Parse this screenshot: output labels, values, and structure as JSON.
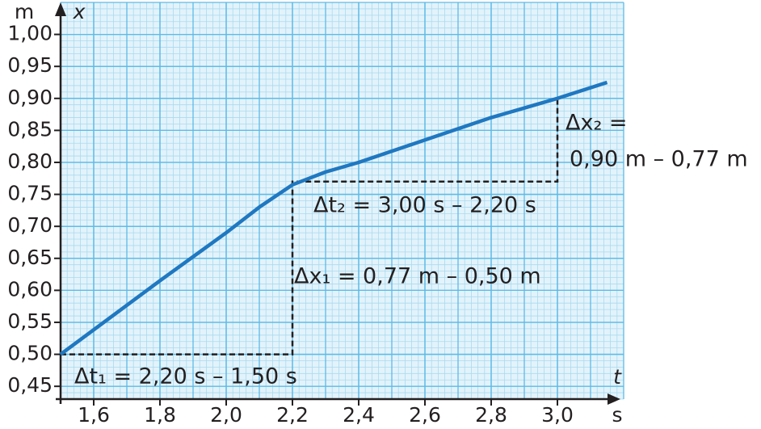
{
  "chart_data": {
    "type": "line",
    "x": [
      1.5,
      1.8,
      2.0,
      2.1,
      2.2,
      2.3,
      2.4,
      2.6,
      2.8,
      3.0,
      3.15
    ],
    "series": [
      {
        "color": "#1f78c1",
        "values": [
          0.5,
          0.615,
          0.69,
          0.73,
          0.765,
          0.785,
          0.8,
          0.835,
          0.87,
          0.9,
          0.925
        ]
      }
    ],
    "reference_path": {
      "x": [
        1.5,
        2.2,
        2.2,
        3.0,
        3.0
      ],
      "y": [
        0.5,
        0.5,
        0.77,
        0.77,
        0.9
      ]
    },
    "xlim": [
      1.5,
      3.2
    ],
    "ylim": [
      0.43,
      1.05
    ],
    "xticks": [
      {
        "value": 1.6,
        "label": "1,6"
      },
      {
        "value": 1.8,
        "label": "1,8"
      },
      {
        "value": 2.0,
        "label": "2,0"
      },
      {
        "value": 2.2,
        "label": "2,2"
      },
      {
        "value": 2.4,
        "label": "2,4"
      },
      {
        "value": 2.6,
        "label": "2,6"
      },
      {
        "value": 2.8,
        "label": "2,8"
      },
      {
        "value": 3.0,
        "label": "3,0"
      }
    ],
    "yticks": [
      {
        "value": 0.45,
        "label": "0,45"
      },
      {
        "value": 0.5,
        "label": "0,50"
      },
      {
        "value": 0.55,
        "label": "0,55"
      },
      {
        "value": 0.6,
        "label": "0,60"
      },
      {
        "value": 0.65,
        "label": "0,65"
      },
      {
        "value": 0.7,
        "label": "0,70"
      },
      {
        "value": 0.75,
        "label": "0,75"
      },
      {
        "value": 0.8,
        "label": "0,80"
      },
      {
        "value": 0.85,
        "label": "0,85"
      },
      {
        "value": 0.9,
        "label": "0,90"
      },
      {
        "value": 0.95,
        "label": "0,95"
      },
      {
        "value": 1.0,
        "label": "1,00"
      }
    ],
    "x_label": "t",
    "x_unit": "s",
    "y_label": "x",
    "y_unit": "m",
    "grid": true,
    "annotations": [
      "Δt₁ = 2,20 s – 1,50 s",
      "Δt₂ = 3,00 s – 2,20 s",
      "Δx₁ = 0,77 m – 0,50 m",
      "Δx₂ =",
      "0,90 m – 0,77 m"
    ]
  }
}
